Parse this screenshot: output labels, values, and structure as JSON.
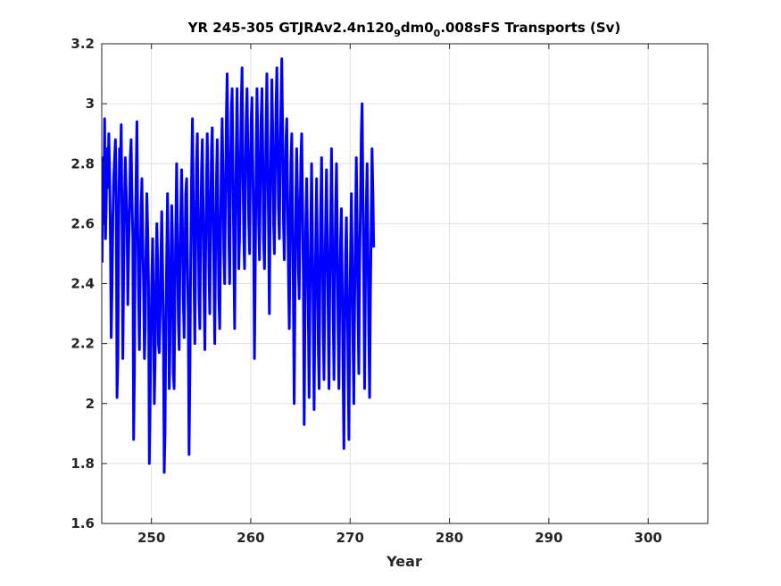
{
  "chart_data": {
    "type": "line",
    "title_parts": [
      {
        "text": "YR 245-305 GTJRAv2.4n120",
        "sub": false
      },
      {
        "text": "9",
        "sub": true
      },
      {
        "text": "dm0",
        "sub": false
      },
      {
        "text": "0",
        "sub": true
      },
      {
        "text": ".008sFS Transports (Sv)",
        "sub": false
      }
    ],
    "xlabel": "Year",
    "ylabel": "",
    "xlim": [
      245,
      306
    ],
    "ylim": [
      1.6,
      3.2
    ],
    "x_ticks": [
      250,
      260,
      270,
      280,
      290,
      300
    ],
    "y_ticks": [
      1.6,
      1.8,
      2.0,
      2.2,
      2.4,
      2.6,
      2.8,
      3.0,
      3.2
    ],
    "x_tick_labels": [
      "250",
      "260",
      "270",
      "280",
      "290",
      "300"
    ],
    "y_tick_labels": [
      "1.6",
      "1.8",
      "2",
      "2.2",
      "2.4",
      "2.6",
      "2.8",
      "3",
      "3.2"
    ],
    "grid": true,
    "line_color": "#0000ff",
    "series": [
      {
        "x_start": 245.04,
        "x_step": 0.08333333,
        "values": [
          2.47,
          2.82,
          2.6,
          2.95,
          2.55,
          2.68,
          2.85,
          2.72,
          2.9,
          2.78,
          2.55,
          2.22,
          2.4,
          2.62,
          2.75,
          2.82,
          2.88,
          2.7,
          2.02,
          2.15,
          2.58,
          2.85,
          2.78,
          2.93,
          2.62,
          2.15,
          2.45,
          2.68,
          2.82,
          2.72,
          2.6,
          2.33,
          2.5,
          2.65,
          2.82,
          2.88,
          2.7,
          2.55,
          1.88,
          2.1,
          2.55,
          2.75,
          2.94,
          2.6,
          2.35,
          2.18,
          2.45,
          2.65,
          2.75,
          2.55,
          2.4,
          2.15,
          2.25,
          2.5,
          2.7,
          2.58,
          2.4,
          1.8,
          2.0,
          2.25,
          2.42,
          2.55,
          2.3,
          2.0,
          2.15,
          2.4,
          2.6,
          2.48,
          2.2,
          2.17,
          2.3,
          2.5,
          2.64,
          2.45,
          2.2,
          1.77,
          1.9,
          2.3,
          2.5,
          2.7,
          2.45,
          2.05,
          2.2,
          2.45,
          2.66,
          2.55,
          2.1,
          2.05,
          2.38,
          2.6,
          2.8,
          2.55,
          2.28,
          2.18,
          2.45,
          2.65,
          2.78,
          2.6,
          2.35,
          2.22,
          2.48,
          2.7,
          2.75,
          2.48,
          2.3,
          1.83,
          2.1,
          2.5,
          2.75,
          2.95,
          2.7,
          2.4,
          2.2,
          2.55,
          2.8,
          2.9,
          2.65,
          2.35,
          2.25,
          2.55,
          2.78,
          2.88,
          2.65,
          2.4,
          2.18,
          2.5,
          2.72,
          2.9,
          2.72,
          2.45,
          2.3,
          2.6,
          2.85,
          2.92,
          2.7,
          2.42,
          2.2,
          2.5,
          2.75,
          2.88,
          2.62,
          2.35,
          2.25,
          2.55,
          2.82,
          2.95,
          2.75,
          2.5,
          2.4,
          2.7,
          2.95,
          3.1,
          2.85,
          2.55,
          2.4,
          2.75,
          2.98,
          3.05,
          2.8,
          2.5,
          2.25,
          2.6,
          2.85,
          3.05,
          2.8,
          2.45,
          2.55,
          2.8,
          3.0,
          3.12,
          2.82,
          2.55,
          2.45,
          2.75,
          2.95,
          3.05,
          2.85,
          2.62,
          2.5,
          2.78,
          2.95,
          3.02,
          2.78,
          2.55,
          2.15,
          2.5,
          2.82,
          3.05,
          2.9,
          2.6,
          2.48,
          2.72,
          2.95,
          3.05,
          2.85,
          2.55,
          2.45,
          2.7,
          2.92,
          3.1,
          2.85,
          2.58,
          2.3,
          2.65,
          2.88,
          3.08,
          2.92,
          2.6,
          2.5,
          2.75,
          2.98,
          3.12,
          2.9,
          2.65,
          2.55,
          2.8,
          3.0,
          3.15,
          2.9,
          2.6,
          2.48,
          2.72,
          2.88,
          2.95,
          2.7,
          2.42,
          2.25,
          2.55,
          2.8,
          2.9,
          2.62,
          2.35,
          2.0,
          2.4,
          2.7,
          2.85,
          2.68,
          2.45,
          2.35,
          2.6,
          2.82,
          2.9,
          2.7,
          2.4,
          1.93,
          2.3,
          2.6,
          2.75,
          2.55,
          2.3,
          2.02,
          2.35,
          2.6,
          2.8,
          2.55,
          2.25,
          1.98,
          2.3,
          2.55,
          2.75,
          2.5,
          2.2,
          2.05,
          2.4,
          2.65,
          2.82,
          2.55,
          2.25,
          2.08,
          2.42,
          2.62,
          2.78,
          2.55,
          2.28,
          2.05,
          2.4,
          2.62,
          2.85,
          2.6,
          2.3,
          2.08,
          2.42,
          2.65,
          2.8,
          2.55,
          2.25,
          2.05,
          2.35,
          2.55,
          2.65,
          2.4,
          2.1,
          1.85,
          2.25,
          2.5,
          2.62,
          2.4,
          2.15,
          1.88,
          2.25,
          2.5,
          2.7,
          2.5,
          2.2,
          2.0,
          2.35,
          2.6,
          2.82,
          2.6,
          2.3,
          2.1,
          2.45,
          2.68,
          2.9,
          3.0,
          2.7,
          2.4,
          2.05,
          2.4,
          2.65,
          2.8,
          2.55,
          2.25,
          2.02,
          2.35,
          2.6,
          2.85,
          2.7,
          2.52
        ]
      }
    ]
  }
}
